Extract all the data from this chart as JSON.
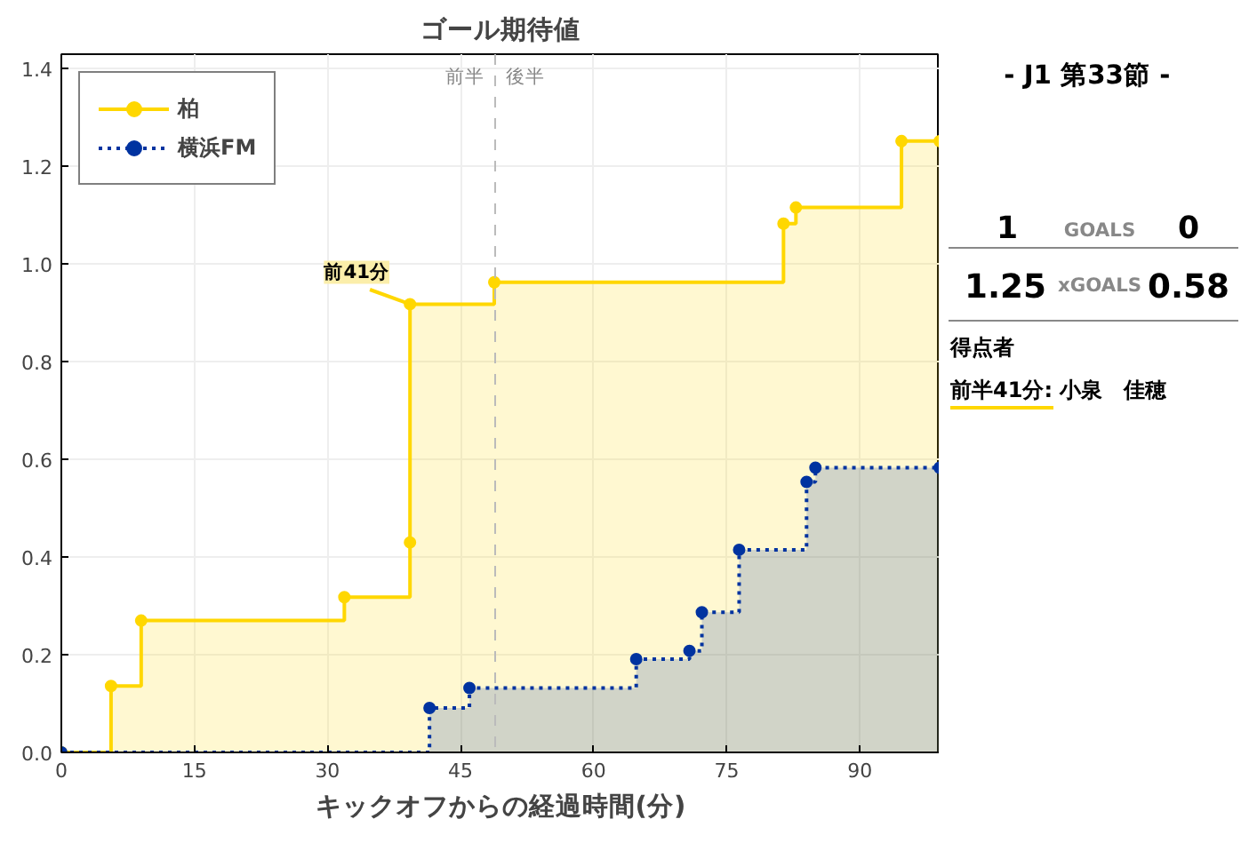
{
  "chart_data": {
    "type": "step",
    "title": "ゴール期待値",
    "xlabel": "キックオフからの経過時間(分)",
    "xlim": [
      0,
      99
    ],
    "ylim": [
      0,
      1.43
    ],
    "xticks": [
      0,
      15,
      30,
      45,
      60,
      75,
      90
    ],
    "yticks": [
      {
        "value": 0,
        "label": "0.0"
      },
      0.2,
      0.4,
      0.6,
      0.8,
      {
        "value": 1,
        "label": "1.0"
      },
      1.2,
      1.4
    ],
    "grid": true,
    "legend": "top left",
    "marker": "circle",
    "series": [
      {
        "name": "柏",
        "color": "#ffd700",
        "line_style": "solid",
        "x": [
          0,
          5.6,
          9,
          31.9,
          39.3,
          39.3,
          48.8,
          81.4,
          82.8,
          94.7,
          99
        ],
        "values": [
          0,
          0.136,
          0.27,
          0.318,
          0.43,
          0.918,
          0.963,
          1.083,
          1.116,
          1.252,
          1.252
        ]
      },
      {
        "name": "横浜FM",
        "color": "#0033a0",
        "line_style": "dotted",
        "x": [
          0,
          41.5,
          46,
          64.8,
          70.8,
          72.2,
          76.4,
          84,
          85,
          99
        ],
        "values": [
          0,
          0.091,
          0.132,
          0.191,
          0.208,
          0.287,
          0.415,
          0.554,
          0.583,
          0.583
        ]
      }
    ],
    "ref_lines": [
      {
        "axis": "x",
        "value": 48.9,
        "color": "#bbbbbb",
        "line_style": "dashed"
      }
    ],
    "annotations": [
      "前半",
      "後半",
      {
        "text": "前41分",
        "x": 39.3,
        "y": 0.918
      },
      "-  J1 第33節  -",
      "1",
      "GOALS",
      "0",
      "1.25",
      "xGOALS",
      "0.58",
      "得点者",
      "前半41分: 小泉　佳穂"
    ]
  }
}
